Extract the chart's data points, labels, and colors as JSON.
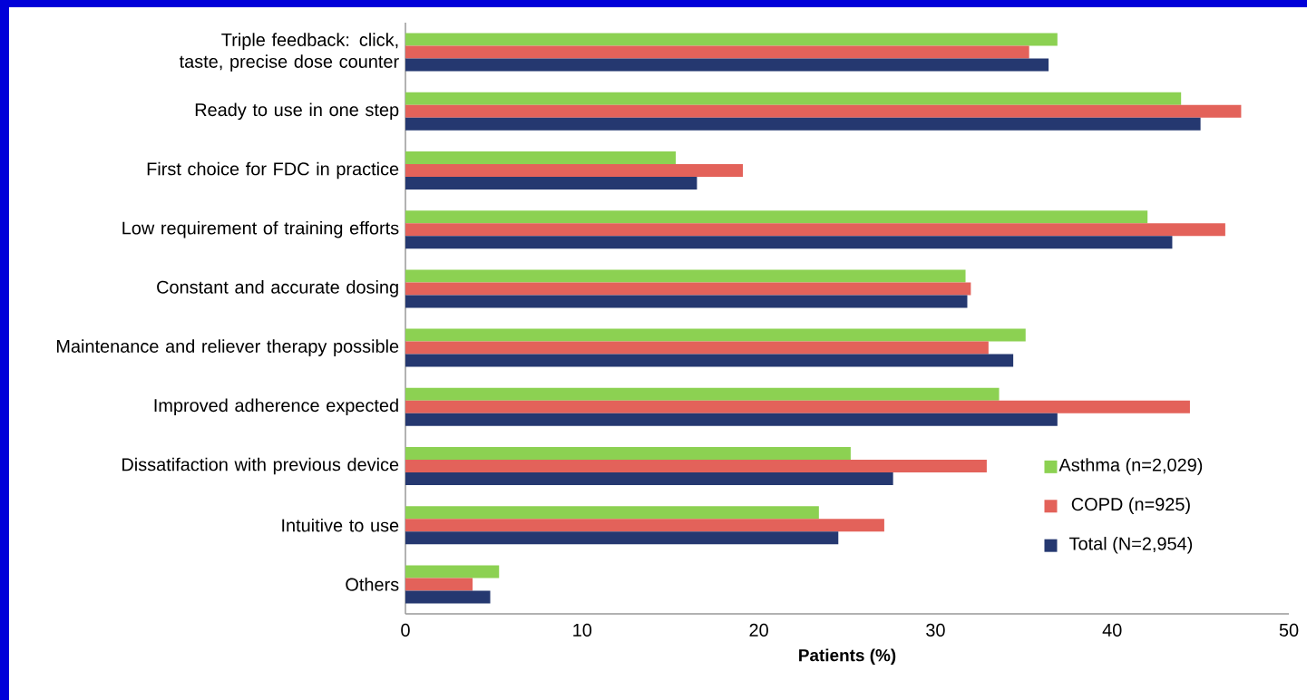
{
  "chart_data": {
    "type": "bar",
    "orientation": "horizontal",
    "xlabel": "Patients (%)",
    "categories": [
      "Triple feedback: click, taste, precise dose counter",
      "Ready to use in one step",
      "First choice for FDC in practice",
      "Low requirement of training efforts",
      "Constant and accurate dosing",
      "Maintenance and reliever therapy possible",
      "Improved adherence expected",
      "Dissatifaction with previous device",
      "Intuitive to use",
      "Others"
    ],
    "series": [
      {
        "name": "Asthma (n=2,029)",
        "color": "#8cd152",
        "values": [
          36.9,
          43.9,
          15.3,
          42.0,
          31.7,
          35.1,
          33.6,
          25.2,
          23.4,
          5.3
        ]
      },
      {
        "name": "COPD (n=925)",
        "color": "#e3625a",
        "values": [
          35.3,
          47.3,
          19.1,
          46.4,
          32.0,
          33.0,
          44.4,
          32.9,
          27.1,
          3.8
        ]
      },
      {
        "name": "Total (N=2,954)",
        "color": "#253870",
        "values": [
          36.4,
          45.0,
          16.5,
          43.4,
          31.8,
          34.4,
          36.9,
          27.6,
          24.5,
          4.8
        ]
      }
    ],
    "xlim": [
      0,
      50
    ],
    "xticks": [
      0,
      10,
      20,
      30,
      40,
      50
    ],
    "grid": false,
    "legend": "bottom right"
  }
}
